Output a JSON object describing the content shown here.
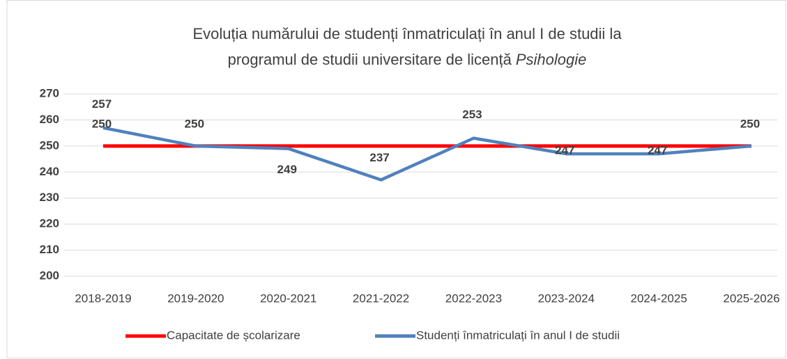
{
  "chart_data": {
    "type": "line",
    "title": [
      "Evoluția numărului de studenți înmatriculați în anul I de studii la",
      "programul de studii universitare de licență",
      "Psihologie"
    ],
    "categories": [
      "2018-2019",
      "2019-2020",
      "2020-2021",
      "2021-2022",
      "2022-2023",
      "2023-2024",
      "2024-2025",
      "2025-2026"
    ],
    "series": [
      {
        "name": "Capacitate de școlarizare",
        "color": "#ff0000",
        "values": [
          250,
          250,
          250,
          250,
          250,
          250,
          250,
          250
        ],
        "value_labels": [
          "250",
          null,
          null,
          null,
          null,
          null,
          null,
          null
        ]
      },
      {
        "name": "Studenți înmatriculați în anul I de studii",
        "color": "#4f81bd",
        "values": [
          257,
          250,
          249,
          237,
          253,
          247,
          247,
          250
        ]
      }
    ],
    "ylim": [
      200,
      270
    ],
    "yticks": [
      200,
      210,
      220,
      230,
      240,
      250,
      260,
      270
    ],
    "grid": true,
    "legend": "bottom"
  }
}
